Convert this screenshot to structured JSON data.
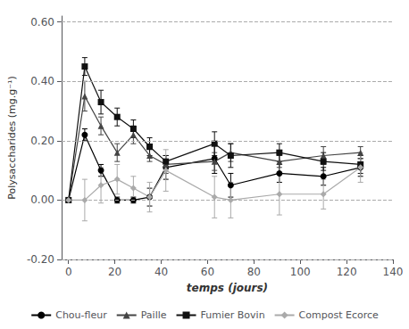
{
  "chart_data": {
    "type": "line",
    "xlabel": "temps (jours)",
    "ylabel": "Polysaccharides (mg.g⁻¹)",
    "xlim": [
      -3,
      140
    ],
    "ylim": [
      -0.2,
      0.62
    ],
    "xticks": [
      0,
      20,
      40,
      60,
      80,
      100,
      120,
      140
    ],
    "yticks": [
      {
        "value": -0.2,
        "label": "-0.20"
      },
      {
        "value": 0.0,
        "label": "0.00"
      },
      {
        "value": 0.2,
        "label": "0.20"
      },
      {
        "value": 0.4,
        "label": "0.40"
      },
      {
        "value": 0.6,
        "label": "0.60"
      }
    ],
    "grid": true,
    "legend": "bottom",
    "x": [
      0,
      7,
      14,
      21,
      28,
      35,
      42,
      63,
      70,
      91,
      110,
      126
    ],
    "series": [
      {
        "name": "Chou-fleur",
        "color": "#000000",
        "marker": "circle",
        "line_style": "solid",
        "values": [
          0.0,
          0.22,
          0.1,
          0.0,
          0.0,
          0.01,
          0.11,
          0.14,
          0.05,
          0.09,
          0.08,
          0.11
        ],
        "yerr": [
          0.0,
          0.02,
          0.02,
          0.01,
          0.01,
          0.03,
          0.04,
          0.05,
          0.04,
          0.03,
          0.03,
          0.03
        ]
      },
      {
        "name": "Paille",
        "color": "#444444",
        "marker": "triangle",
        "line_style": "solid",
        "values": [
          0.0,
          0.35,
          0.25,
          0.16,
          0.22,
          0.15,
          0.12,
          0.13,
          0.16,
          0.13,
          0.15,
          0.16
        ],
        "yerr": [
          0.0,
          0.05,
          0.03,
          0.03,
          0.03,
          0.02,
          0.03,
          0.03,
          0.03,
          0.02,
          0.03,
          0.02
        ]
      },
      {
        "name": "Fumier Bovin",
        "color": "#111111",
        "marker": "square",
        "line_style": "solid",
        "values": [
          0.0,
          0.45,
          0.33,
          0.28,
          0.24,
          0.18,
          0.13,
          0.19,
          0.15,
          0.16,
          0.13,
          0.12
        ],
        "yerr": [
          0.0,
          0.03,
          0.04,
          0.03,
          0.03,
          0.03,
          0.02,
          0.04,
          0.04,
          0.03,
          0.03,
          0.03
        ]
      },
      {
        "name": "Compost Ecorce",
        "color": "#aaaaaa",
        "marker": "diamond",
        "line_style": "solid",
        "values": [
          0.0,
          0.0,
          0.05,
          0.07,
          0.04,
          0.01,
          0.1,
          0.01,
          0.0,
          0.02,
          0.02,
          0.11
        ],
        "yerr": [
          0.0,
          0.07,
          0.06,
          0.05,
          0.04,
          0.05,
          0.07,
          0.07,
          0.06,
          0.07,
          0.05,
          0.05
        ]
      }
    ]
  }
}
